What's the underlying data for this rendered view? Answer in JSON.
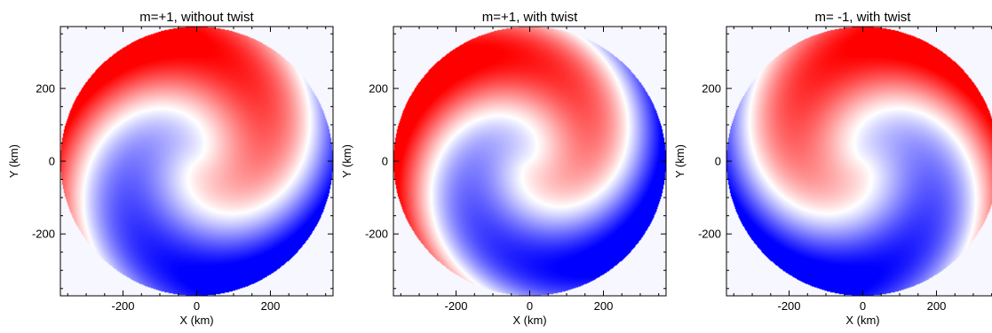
{
  "chart_data": [
    {
      "type": "heatmap",
      "title": "m=+1, without twist",
      "xlabel": "X (km)",
      "ylabel": "Y (km)",
      "xlim": [
        -370,
        370
      ],
      "ylim": [
        -370,
        370
      ],
      "xticks": [
        -200,
        0,
        200
      ],
      "yticks": [
        -200,
        0,
        200
      ],
      "disk_radius_km": 370,
      "colormap": [
        "#0000ff",
        "#ffffff",
        "#ff0000"
      ],
      "background_color": "#f7f7ff",
      "spiral_sign": 1,
      "twist": 1.0,
      "twist_direction": 1,
      "phase_deg": 52
    },
    {
      "type": "heatmap",
      "title": "m=+1, with twist",
      "xlabel": "X (km)",
      "ylabel": "Y (km)",
      "xlim": [
        -370,
        370
      ],
      "ylim": [
        -370,
        370
      ],
      "xticks": [
        -200,
        0,
        200
      ],
      "yticks": [
        -200,
        0,
        200
      ],
      "disk_radius_km": 370,
      "colormap": [
        "#0000ff",
        "#ffffff",
        "#ff0000"
      ],
      "background_color": "#f7f7ff",
      "spiral_sign": 1,
      "twist": 1.15,
      "twist_direction": 1,
      "phase_deg": 52
    },
    {
      "type": "heatmap",
      "title": "m= -1, with twist",
      "xlabel": "X (km)",
      "ylabel": "Y (km)",
      "xlim": [
        -370,
        370
      ],
      "ylim": [
        -370,
        370
      ],
      "xticks": [
        -200,
        0,
        200
      ],
      "yticks": [
        -200,
        0,
        200
      ],
      "disk_radius_km": 370,
      "colormap": [
        "#0000ff",
        "#ffffff",
        "#ff0000"
      ],
      "background_color": "#f7f7ff",
      "spiral_sign": -1,
      "twist": 1.0,
      "twist_direction": -1,
      "phase_deg": -52
    }
  ]
}
